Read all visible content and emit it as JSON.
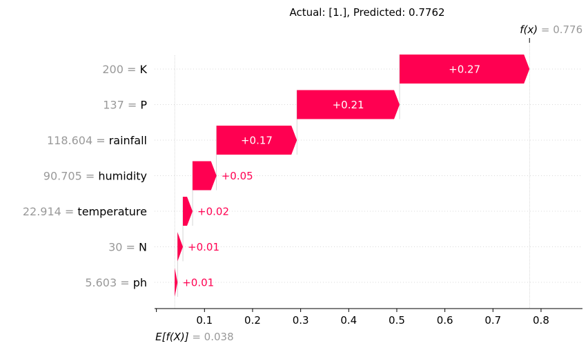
{
  "chart_data": {
    "type": "waterfall",
    "title": "Actual: [1.], Predicted: 0.7762",
    "base_value": 0.038,
    "base_value_label": "0.038",
    "base_prefix": "E[f(X)]",
    "output_value": 0.776,
    "output_value_label": "0.776",
    "output_prefix": "f(x)",
    "features": [
      {
        "value": "200",
        "name": "K",
        "contribution": 0.2702,
        "label": "+0.27"
      },
      {
        "value": "137",
        "name": "P",
        "contribution": 0.2136,
        "label": "+0.21"
      },
      {
        "value": "118.604",
        "name": "rainfall",
        "contribution": 0.1672,
        "label": "+0.17"
      },
      {
        "value": "90.705",
        "name": "humidity",
        "contribution": 0.0498,
        "label": "+0.05"
      },
      {
        "value": "22.914",
        "name": "temperature",
        "contribution": 0.0201,
        "label": "+0.02"
      },
      {
        "value": "30",
        "name": "N",
        "contribution": 0.0112,
        "label": "+0.01"
      },
      {
        "value": "5.603",
        "name": "ph",
        "contribution": 0.0059,
        "label": "+0.01"
      }
    ],
    "xticks": [
      0,
      0.1,
      0.2,
      0.3,
      0.4,
      0.5,
      0.6,
      0.7,
      0.8
    ],
    "xtick_labels": [
      "",
      "0.1",
      "0.2",
      "0.3",
      "0.4",
      "0.5",
      "0.6",
      "0.7",
      "0.8"
    ],
    "xlim": [
      -0.0038,
      0.8862
    ],
    "positive_color": "#ff0051",
    "negative_color": "#008bfb",
    "grid_color": "#cccccc"
  }
}
